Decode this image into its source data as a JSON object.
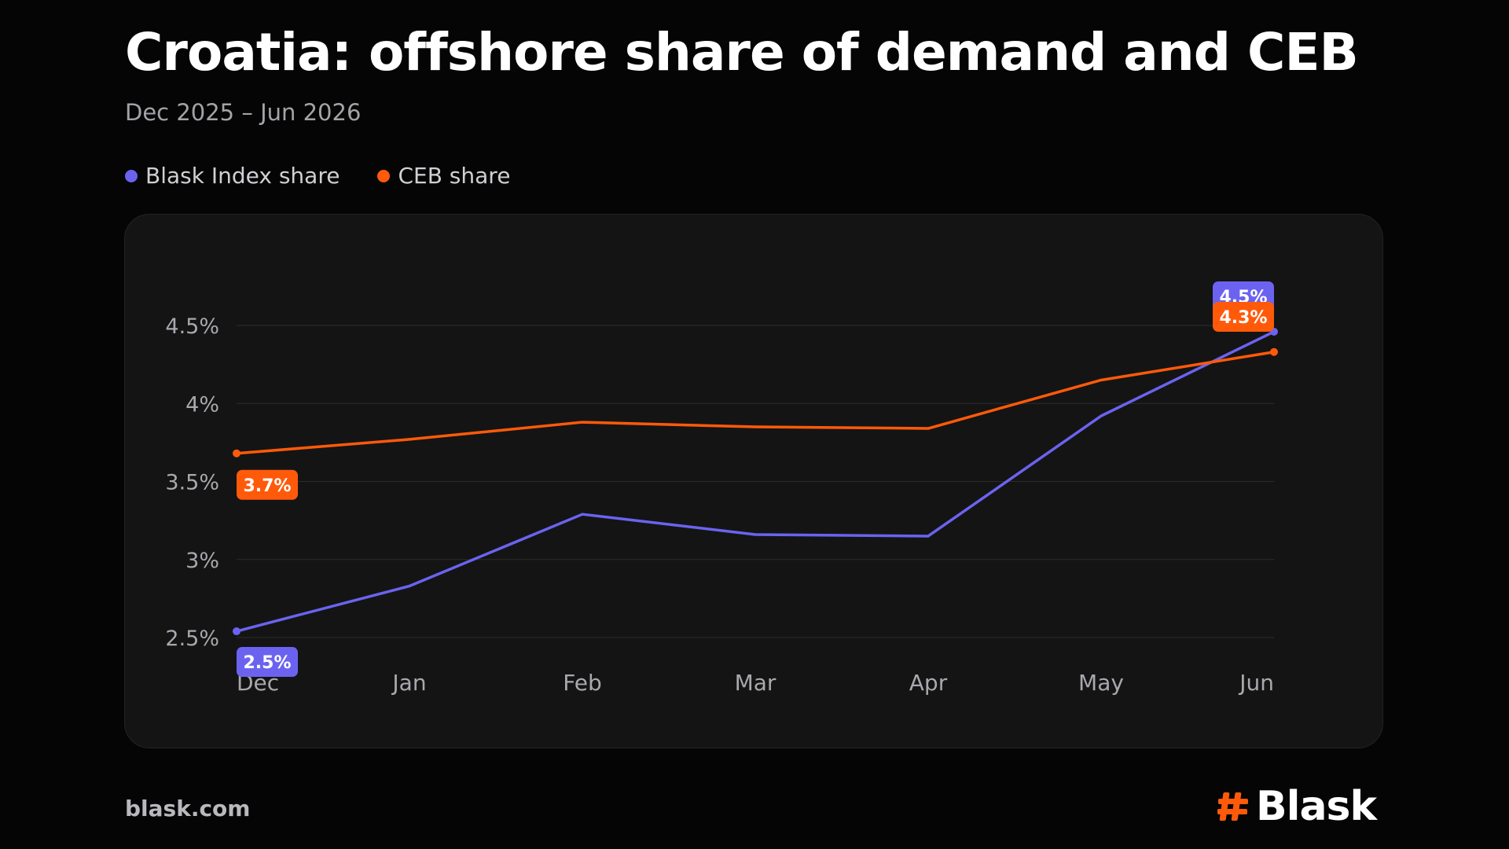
{
  "header": {
    "title": "Croatia: offshore share of demand and CEB",
    "subtitle": "Dec 2025 – Jun 2026"
  },
  "footer": {
    "url": "blask.com",
    "brand": "Blask"
  },
  "colors": {
    "background": "#050505",
    "panel": "#141414",
    "blask_series": "#6b63f0",
    "ceb_series": "#ff5a0a",
    "grid": "#2c2c2c",
    "tick_text": "#a8a8ae"
  },
  "chart_data": {
    "type": "line",
    "title": "Croatia: offshore share of demand and CEB",
    "subtitle": "Dec 2025 – Jun 2026",
    "categories": [
      "Dec",
      "Jan",
      "Feb",
      "Mar",
      "Apr",
      "May",
      "Jun"
    ],
    "y_ticks": [
      "2.5%",
      "3%",
      "3.5%",
      "4%",
      "4.5%"
    ],
    "ylim": [
      2.5,
      4.5
    ],
    "grid": true,
    "legend_position": "top-left",
    "series": [
      {
        "name": "Blask Index share",
        "color": "#6b63f0",
        "values": [
          2.54,
          2.83,
          3.29,
          3.16,
          3.15,
          3.92,
          4.46
        ],
        "labels": {
          "first": "2.5%",
          "last": "4.5%"
        }
      },
      {
        "name": "CEB share",
        "color": "#ff5a0a",
        "values": [
          3.68,
          3.77,
          3.88,
          3.85,
          3.84,
          4.15,
          4.33
        ],
        "labels": {
          "first": "3.7%",
          "last": "4.3%"
        }
      }
    ]
  }
}
